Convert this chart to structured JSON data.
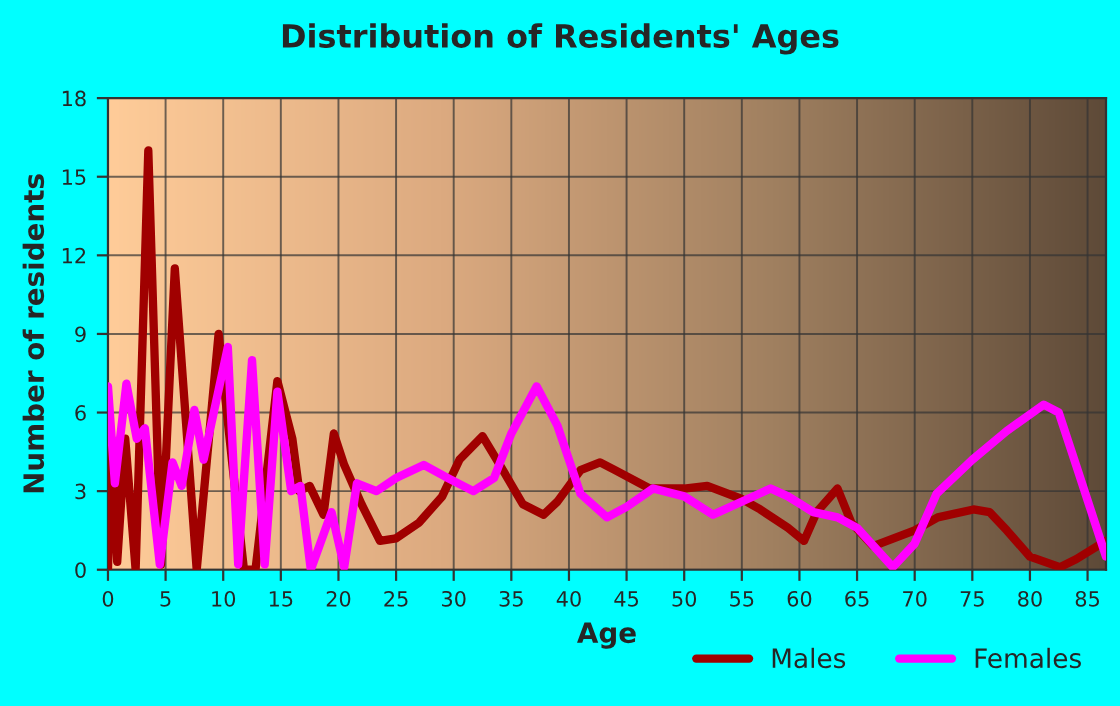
{
  "chart_data": {
    "type": "line",
    "title": "Distribution of Residents' Ages",
    "xlabel": "Age",
    "ylabel": "Number of residents",
    "xlim": [
      0,
      86.6
    ],
    "ylim": [
      0,
      18
    ],
    "xticks": [
      0,
      5,
      10,
      15,
      20,
      25,
      30,
      35,
      40,
      45,
      50,
      55,
      60,
      65,
      70,
      75,
      80,
      85
    ],
    "yticks": [
      0,
      3,
      6,
      9,
      12,
      15,
      18
    ],
    "grid": true,
    "legend": "bottom right",
    "series": [
      {
        "name": "Males",
        "color": "#a00000",
        "x": [
          0,
          0.3,
          0.8,
          1.5,
          2.4,
          3.5,
          4.6,
          5.8,
          7.7,
          9.6,
          10.8,
          11.8,
          12.8,
          14.7,
          16,
          16.6,
          17.5,
          18.7,
          19.6,
          20.5,
          22,
          23.6,
          25,
          27,
          29,
          30.5,
          32.5,
          34,
          36,
          37.8,
          39,
          41,
          42.7,
          44,
          47,
          50,
          52,
          55,
          56.6,
          59,
          60.4,
          61.5,
          63.3,
          64.5,
          66.4,
          70,
          72,
          75.1,
          76.5,
          78,
          80,
          82.6,
          84,
          86.6
        ],
        "values": [
          0,
          5,
          0.3,
          5,
          0,
          16,
          0.2,
          11.5,
          0,
          9,
          4,
          0,
          0,
          7.2,
          5,
          3,
          3.2,
          2.1,
          5.2,
          4,
          2.5,
          1.1,
          1.2,
          1.8,
          2.8,
          4.2,
          5.1,
          4,
          2.5,
          2.1,
          2.6,
          3.8,
          4.1,
          3.8,
          3.1,
          3.1,
          3.2,
          2.7,
          2.3,
          1.6,
          1.1,
          2.2,
          3.1,
          1.8,
          0.9,
          1.5,
          2,
          2.3,
          2.2,
          1.5,
          0.5,
          0.1,
          0.4,
          1.1
        ]
      },
      {
        "name": "Females",
        "color": "#ff00ff",
        "x": [
          0,
          0.6,
          1.6,
          2.5,
          3.2,
          4.5,
          5.6,
          6.4,
          7.5,
          8.3,
          10.4,
          11.3,
          12.5,
          13.6,
          14.7,
          15.9,
          16.7,
          17.6,
          19.4,
          20.5,
          21.6,
          23.3,
          25,
          27.4,
          29.5,
          31.7,
          33.5,
          35,
          37.2,
          39,
          41,
          43.3,
          45,
          47.3,
          50,
          52.5,
          54.5,
          57.5,
          59,
          61.2,
          63.3,
          65,
          68.1,
          70,
          71.9,
          75,
          78,
          81.2,
          82.5,
          84,
          86.6
        ],
        "values": [
          7,
          3.3,
          7.1,
          5,
          5.4,
          0.2,
          4.1,
          3.2,
          6.1,
          4.2,
          8.5,
          0.2,
          8,
          0.2,
          6.8,
          3,
          3.2,
          0,
          2.2,
          0.1,
          3.3,
          3,
          3.5,
          4,
          3.5,
          3,
          3.5,
          5.2,
          7,
          5.5,
          2.9,
          2,
          2.4,
          3.1,
          2.8,
          2.1,
          2.5,
          3.1,
          2.8,
          2.2,
          2,
          1.6,
          0.1,
          1,
          2.9,
          4.2,
          5.3,
          6.3,
          6,
          4,
          0.5
        ]
      }
    ]
  }
}
